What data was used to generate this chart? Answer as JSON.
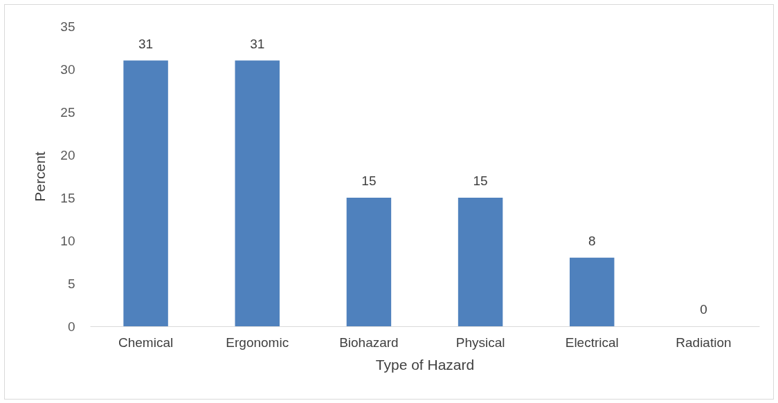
{
  "chart_data": {
    "type": "bar",
    "xlabel": "Type of Hazard",
    "ylabel": "Percent",
    "categories": [
      "Chemical",
      "Ergonomic",
      "Biohazard",
      "Physical",
      "Electrical",
      "Radiation"
    ],
    "values": [
      31,
      31,
      15,
      15,
      8,
      0
    ],
    "color": "#4f81bd",
    "ylim": [
      0,
      35
    ],
    "yticks": [
      0,
      5,
      10,
      15,
      20,
      25,
      30,
      35
    ],
    "data_labels": true,
    "grid": false
  }
}
